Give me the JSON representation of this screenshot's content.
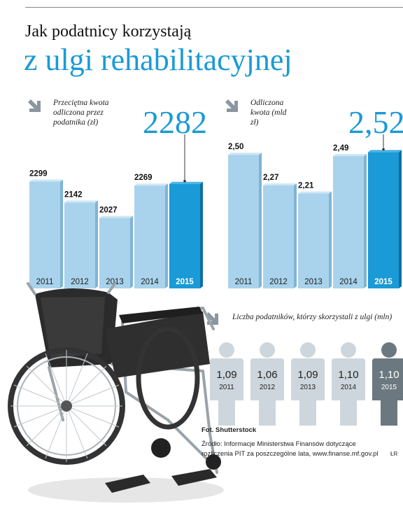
{
  "header": {
    "title_line1": "Jak podatnicy korzystają",
    "title_line2": "z ulgi rehabilitacyjnej"
  },
  "colors": {
    "accent": "#1a9ad6",
    "bar_light": "#a9d3ec",
    "bar_dark": "#1a9ad6",
    "person_light": "#cdd6dc",
    "person_dark": "#6b7880"
  },
  "chart_data": [
    {
      "type": "bar",
      "caption": "Przeciętna kwota odliczona przez podatnika (zł)",
      "highlight_value": "2282",
      "categories": [
        "2011",
        "2012",
        "2013",
        "2014",
        "2015"
      ],
      "values": [
        2299,
        2142,
        2027,
        2269,
        2282
      ],
      "value_labels": [
        "2299",
        "2142",
        "2027",
        "2269",
        ""
      ],
      "highlight_index": 4
    },
    {
      "type": "bar",
      "caption": "Odliczona kwota (mld zł)",
      "highlight_value": "2,52",
      "categories": [
        "2011",
        "2012",
        "2013",
        "2014",
        "2015"
      ],
      "values": [
        2.5,
        2.27,
        2.21,
        2.49,
        2.52
      ],
      "value_labels": [
        "2,50",
        "2,27",
        "2,21",
        "2,49",
        ""
      ],
      "highlight_index": 4
    },
    {
      "type": "pictogram",
      "caption": "Liczba podatników, którzy skorzystali z ulgi (mln)",
      "categories": [
        "2011",
        "2012",
        "2013",
        "2014",
        "2015"
      ],
      "values": [
        1.09,
        1.06,
        1.09,
        1.1,
        1.1
      ],
      "value_labels": [
        "1,09",
        "1,06",
        "1,09",
        "1,10",
        "1,10"
      ],
      "highlight_index": 4
    }
  ],
  "footer": {
    "photo": "Fot. Shutterstock",
    "source_line1": "Źródło: Informacje Ministerstwa Finansów dotyczące",
    "source_line2": "rozliczenia PIT za poszczególne lata, www.finanse.mf.gov.pl",
    "initials": "ŁR"
  }
}
